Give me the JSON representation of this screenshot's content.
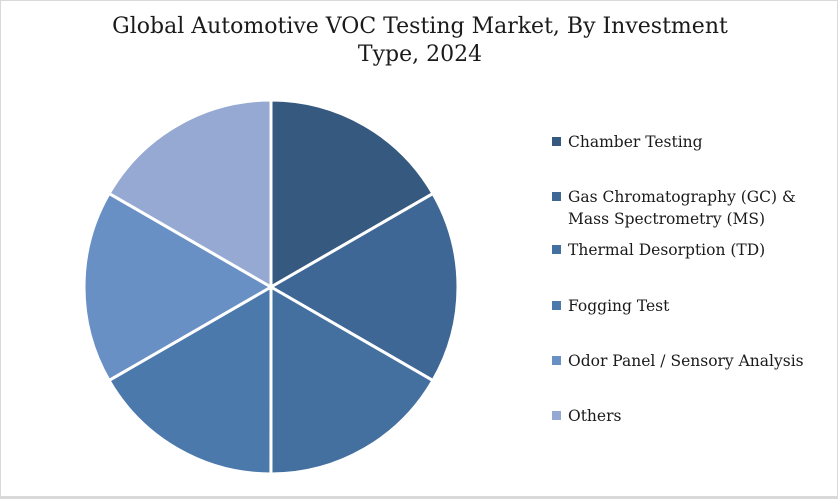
{
  "frame": {
    "background_color": "#FFFFFF",
    "border_color": "#D9D9D9"
  },
  "chart_data": {
    "type": "pie",
    "title": "Global Automotive VOC Testing Market, By Investment Type, 2024",
    "title_lines": [
      "Global Automotive VOC Testing Market, By Investment",
      "Type, 2024"
    ],
    "categories": [
      "Chamber Testing",
      "Gas Chromatography (GC) & Mass Spectrometry (MS)",
      "Thermal Desorption (TD)",
      "Fogging Test",
      "Odor Panel / Sensory Analysis",
      "Others"
    ],
    "values_percent": [
      16.67,
      16.67,
      16.67,
      16.67,
      16.67,
      16.66
    ],
    "colors": [
      "#36597F",
      "#3E6795",
      "#44709F",
      "#4B79AC",
      "#6990C4",
      "#96A9D2"
    ],
    "slice_border_color": "#FFFFFF",
    "start_angle_deg_from_top": 0,
    "direction": "clockwise",
    "data_labels": "none",
    "legend_position": "right",
    "legend_marker": "square",
    "legend_lines": [
      [
        "Chamber Testing"
      ],
      [
        "Gas Chromatography (GC) &",
        "Mass Spectrometry (MS)"
      ],
      [
        "Thermal Desorption (TD)"
      ],
      [
        "Fogging Test"
      ],
      [
        "Odor Panel / Sensory Analysis"
      ],
      [
        "Others"
      ]
    ]
  }
}
